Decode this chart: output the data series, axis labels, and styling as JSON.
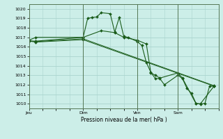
{
  "title": "Pression niveau de la mer( hPa )",
  "bg_color": "#cceee8",
  "grid_color": "#aad4ce",
  "line_color": "#1a5c1a",
  "marker_color": "#1a5c1a",
  "ylim": [
    1009.5,
    1020.5
  ],
  "yticks": [
    1010,
    1011,
    1012,
    1013,
    1014,
    1015,
    1016,
    1017,
    1018,
    1019,
    1020
  ],
  "xtick_labels": [
    "Jeu",
    "Dim",
    "Ven",
    "Sam"
  ],
  "xtick_positions": [
    0,
    24,
    48,
    66
  ],
  "vline_positions": [
    0,
    24,
    48,
    66
  ],
  "series1": [
    0,
    1016.7,
    3,
    1017.0,
    24,
    1017.0,
    26,
    1019.0,
    28,
    1019.1,
    30,
    1019.15,
    32,
    1019.6,
    36,
    1019.5,
    38,
    1017.55,
    40,
    1019.1,
    42,
    1017.1,
    44,
    1017.0,
    48,
    1016.55,
    50,
    1016.15,
    52,
    1014.35,
    54,
    1013.3,
    56,
    1012.65,
    58,
    1012.65,
    60,
    1012.0,
    66,
    1013.0,
    68,
    1012.65,
    70,
    1011.6,
    72,
    1011.1,
    74,
    1010.05,
    76,
    1009.95,
    78,
    1010.05,
    80,
    1011.85,
    82,
    1011.85
  ],
  "series2": [
    0,
    1016.6,
    3,
    1016.6,
    24,
    1017.0,
    32,
    1017.7,
    38,
    1017.5,
    42,
    1017.0,
    48,
    1016.7,
    52,
    1016.3,
    54,
    1013.25,
    56,
    1013.0,
    58,
    1012.7,
    66,
    1013.25,
    68,
    1012.7,
    74,
    1010.0,
    76,
    1010.0,
    82,
    1011.85
  ],
  "series3": [
    0,
    1016.65,
    3,
    1016.55,
    24,
    1016.85,
    82,
    1011.9
  ],
  "series4": [
    0,
    1016.6,
    3,
    1016.5,
    24,
    1016.75,
    82,
    1011.85
  ],
  "total_hours": 84
}
